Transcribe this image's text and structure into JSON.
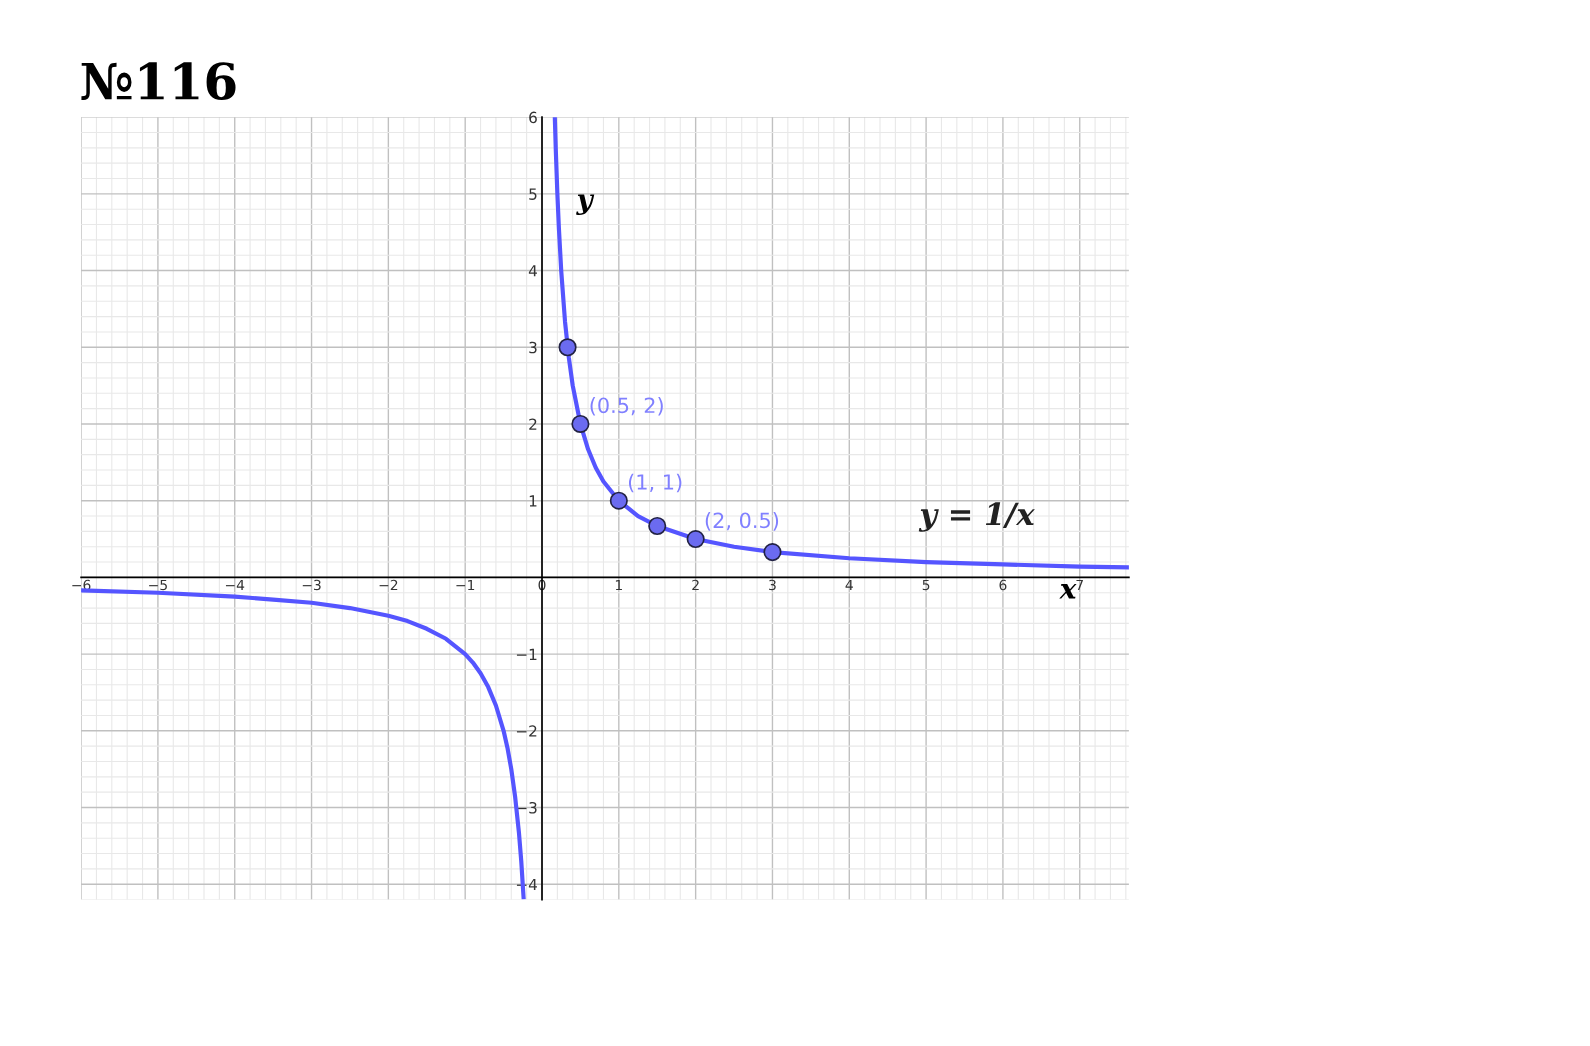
{
  "chart_data": {
    "type": "line",
    "title": "№116",
    "xlabel": "x",
    "ylabel": "y",
    "xlim": [
      -6,
      7.64
    ],
    "ylim": [
      -4.2,
      6
    ],
    "xticks": [
      {
        "value": -6,
        "label": "−6"
      },
      {
        "value": -5,
        "label": "−5"
      },
      {
        "value": -4,
        "label": "−4"
      },
      {
        "value": -3,
        "label": "−3"
      },
      {
        "value": -2,
        "label": "−2"
      },
      {
        "value": -1,
        "label": "−1"
      },
      0,
      1,
      2,
      3,
      4,
      5,
      6,
      7
    ],
    "yticks": [
      {
        "value": -4,
        "label": "−4"
      },
      {
        "value": -3,
        "label": "−3"
      },
      {
        "value": -2,
        "label": "−2"
      },
      {
        "value": -1,
        "label": "−1"
      },
      {
        "value": 0,
        "label": null
      },
      1,
      2,
      3,
      4,
      5,
      6
    ],
    "grid": true,
    "legend": false,
    "series": [
      {
        "color": "#5555ff",
        "line_style": "solid",
        "marker": "none",
        "x": [
          -6,
          -5,
          -4,
          -3.5,
          -3,
          -2.5,
          -2,
          -1.75,
          -1.5,
          -1.25,
          -1,
          -0.9,
          -0.8,
          -0.7,
          -0.6,
          -0.5,
          -0.45,
          -0.4,
          -0.35,
          -0.3,
          -0.27,
          -0.24,
          0,
          0.167,
          0.18,
          0.2,
          0.22,
          0.25,
          0.3,
          0.35,
          0.4,
          0.5,
          0.6,
          0.7,
          0.8,
          1,
          1.25,
          1.5,
          2,
          2.5,
          3,
          4,
          5,
          6,
          7,
          7.64
        ],
        "values": [
          -0.17,
          -0.2,
          -0.25,
          -0.29,
          -0.33,
          -0.4,
          -0.5,
          -0.57,
          -0.67,
          -0.8,
          -1,
          -1.11,
          -1.25,
          -1.43,
          -1.67,
          -2,
          -2.22,
          -2.5,
          -2.86,
          -3.33,
          -3.7,
          -4.17,
          null,
          5.99,
          5.56,
          5,
          4.55,
          4,
          3.33,
          2.86,
          2.5,
          2,
          1.67,
          1.43,
          1.25,
          1,
          0.8,
          0.67,
          0.5,
          0.4,
          0.33,
          0.25,
          0.2,
          0.17,
          0.14,
          0.13
        ]
      },
      {
        "type": "scatter",
        "color": "#6b6bf0",
        "marker": "circle",
        "x": [
          0.333,
          0.5,
          1,
          1.5,
          2,
          3
        ],
        "values": [
          3,
          2,
          1,
          0.67,
          0.5,
          0.33
        ]
      }
    ],
    "annotations": [
      {
        "text": "(0.5, 2)",
        "x": 0.5,
        "y": 2
      },
      {
        "text": "(1, 1)",
        "x": 1,
        "y": 1
      },
      {
        "text": "(2, 0.5)",
        "x": 2,
        "y": 0.5
      },
      "y = 1/x"
    ]
  }
}
